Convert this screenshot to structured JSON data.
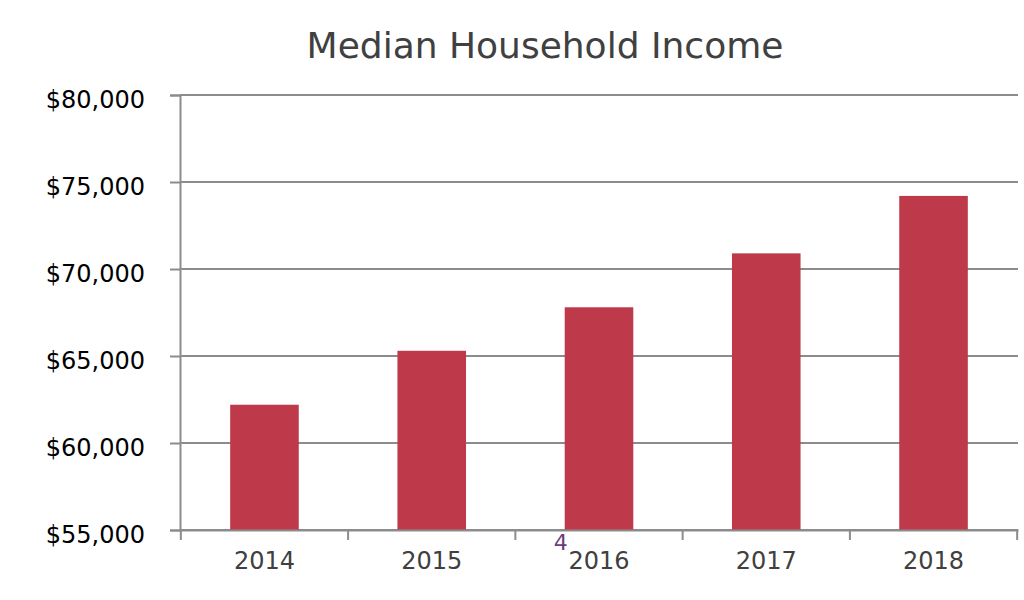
{
  "chart_data": {
    "type": "bar",
    "title": "Median Household Income",
    "categories": [
      "2014",
      "2015",
      "2016",
      "2017",
      "2018"
    ],
    "values": [
      62200,
      65300,
      67800,
      70900,
      74200
    ],
    "color": "#be3a4a",
    "ylim": [
      55000,
      80000
    ],
    "yticks": [
      {
        "value": 55000,
        "label": "$55,000"
      },
      {
        "value": 60000,
        "label": "$60,000"
      },
      {
        "value": 65000,
        "label": "$65,000"
      },
      {
        "value": 70000,
        "label": "$70,000"
      },
      {
        "value": 75000,
        "label": "$75,000"
      },
      {
        "value": 80000,
        "label": "$80,000"
      }
    ],
    "grid": true,
    "annotation": "4"
  }
}
